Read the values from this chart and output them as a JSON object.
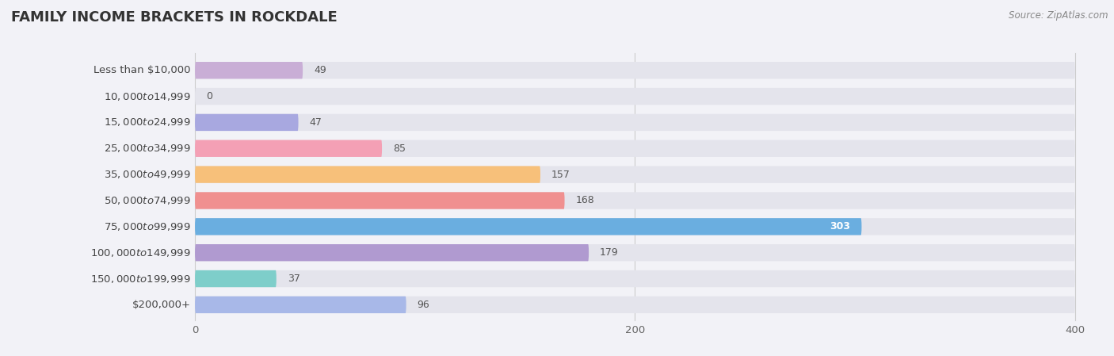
{
  "title": "Family Income Brackets in Rockdale",
  "title_display": "FAMILY INCOME BRACKETS IN ROCKDALE",
  "source": "Source: ZipAtlas.com",
  "categories": [
    "Less than $10,000",
    "$10,000 to $14,999",
    "$15,000 to $24,999",
    "$25,000 to $34,999",
    "$35,000 to $49,999",
    "$50,000 to $74,999",
    "$75,000 to $99,999",
    "$100,000 to $149,999",
    "$150,000 to $199,999",
    "$200,000+"
  ],
  "values": [
    49,
    0,
    47,
    85,
    157,
    168,
    303,
    179,
    37,
    96
  ],
  "bar_colors": [
    "#c9aed6",
    "#7ececa",
    "#a8a8e0",
    "#f4a0b5",
    "#f7c07a",
    "#f09090",
    "#6aaee0",
    "#b09ad0",
    "#7ececa",
    "#a8b8e8"
  ],
  "label_colors": [
    "#555555",
    "#555555",
    "#555555",
    "#555555",
    "#555555",
    "#555555",
    "#ffffff",
    "#555555",
    "#555555",
    "#555555"
  ],
  "background_color": "#f2f2f7",
  "bar_bg_color": "#e4e4ec",
  "xlim": [
    0,
    400
  ],
  "xticks": [
    0,
    200,
    400
  ],
  "title_fontsize": 13,
  "label_fontsize": 9.5,
  "value_fontsize": 9,
  "source_fontsize": 8.5,
  "bar_height": 0.65
}
